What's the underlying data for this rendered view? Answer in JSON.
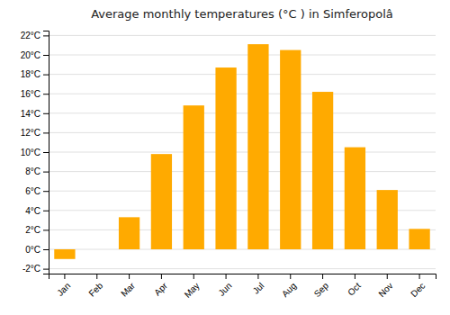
{
  "chart_data": {
    "type": "bar",
    "title": "Average monthly temperatures (°C ) in Simferopolâ",
    "categories": [
      "Jan",
      "Feb",
      "Mar",
      "Apr",
      "May",
      "Jun",
      "Jul",
      "Aug",
      "Sep",
      "Oct",
      "Nov",
      "Dec"
    ],
    "values": [
      -1.0,
      0.0,
      3.3,
      9.8,
      14.8,
      18.7,
      21.1,
      20.5,
      16.2,
      10.5,
      6.1,
      2.1
    ],
    "color": "#FFAA00",
    "ylim": [
      -2.5,
      22.5
    ],
    "yticks": [
      {
        "value": -2,
        "label": "-2°C"
      },
      {
        "value": 0,
        "label": "0°C"
      },
      {
        "value": 2,
        "label": "2°C"
      },
      {
        "value": 4,
        "label": "4°C"
      },
      {
        "value": 6,
        "label": "6°C"
      },
      {
        "value": 8,
        "label": "8°C"
      },
      {
        "value": 10,
        "label": "10°C"
      },
      {
        "value": 12,
        "label": "12°C"
      },
      {
        "value": 14,
        "label": "14°C"
      },
      {
        "value": 16,
        "label": "16°C"
      },
      {
        "value": 18,
        "label": "18°C"
      },
      {
        "value": 20,
        "label": "20°C"
      },
      {
        "value": 22,
        "label": "22°C"
      }
    ],
    "grid": true
  }
}
